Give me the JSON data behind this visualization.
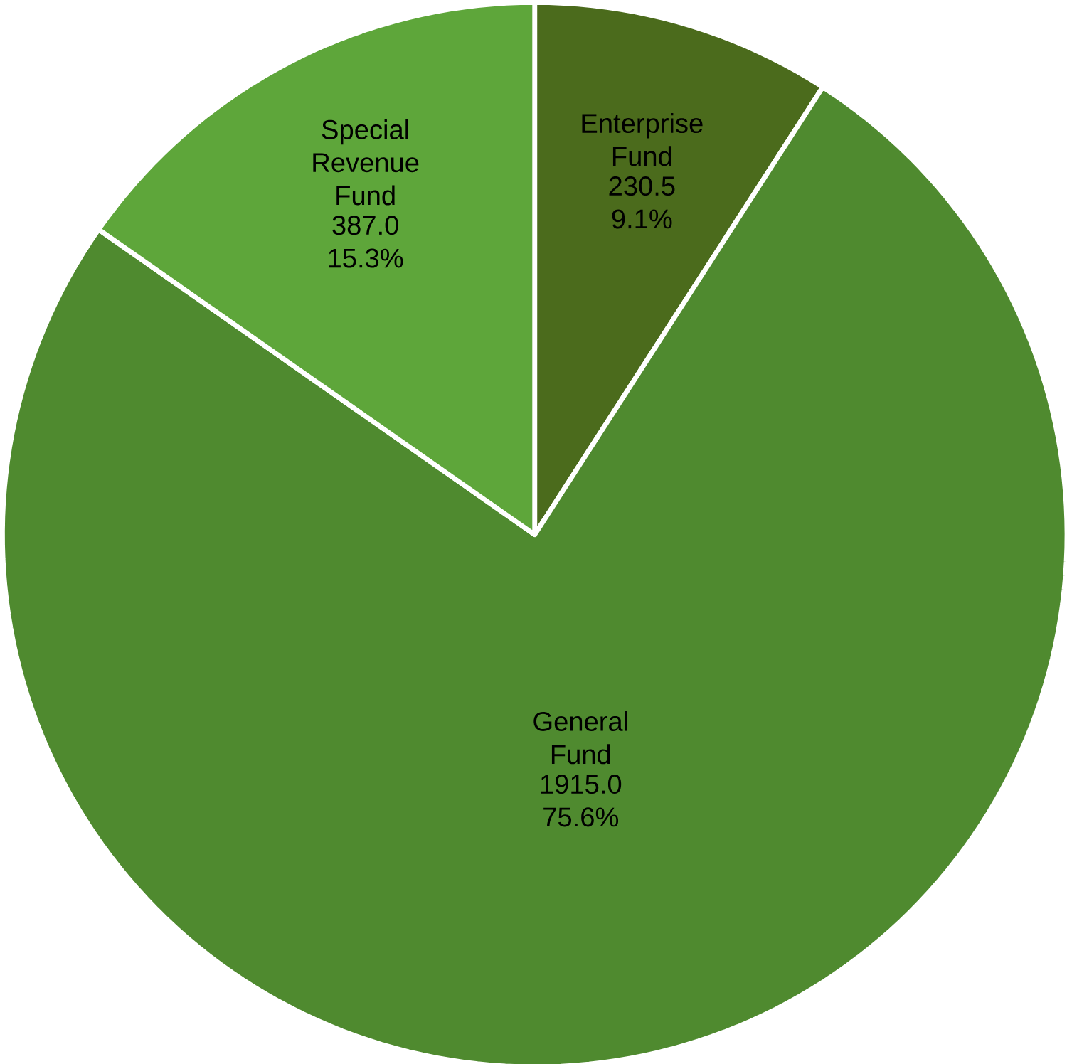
{
  "chart_data": {
    "type": "pie",
    "categories": [
      "Enterprise Fund",
      "General Fund",
      "Special Revenue Fund"
    ],
    "values": [
      230.5,
      1915.0,
      387.0
    ],
    "value_labels": [
      "230.5 9.1%",
      "1915.0 75.6%",
      "387.0 15.3%"
    ],
    "colors": [
      "#4b6b1c",
      "#4f8a2f",
      "#5ea63a"
    ]
  }
}
